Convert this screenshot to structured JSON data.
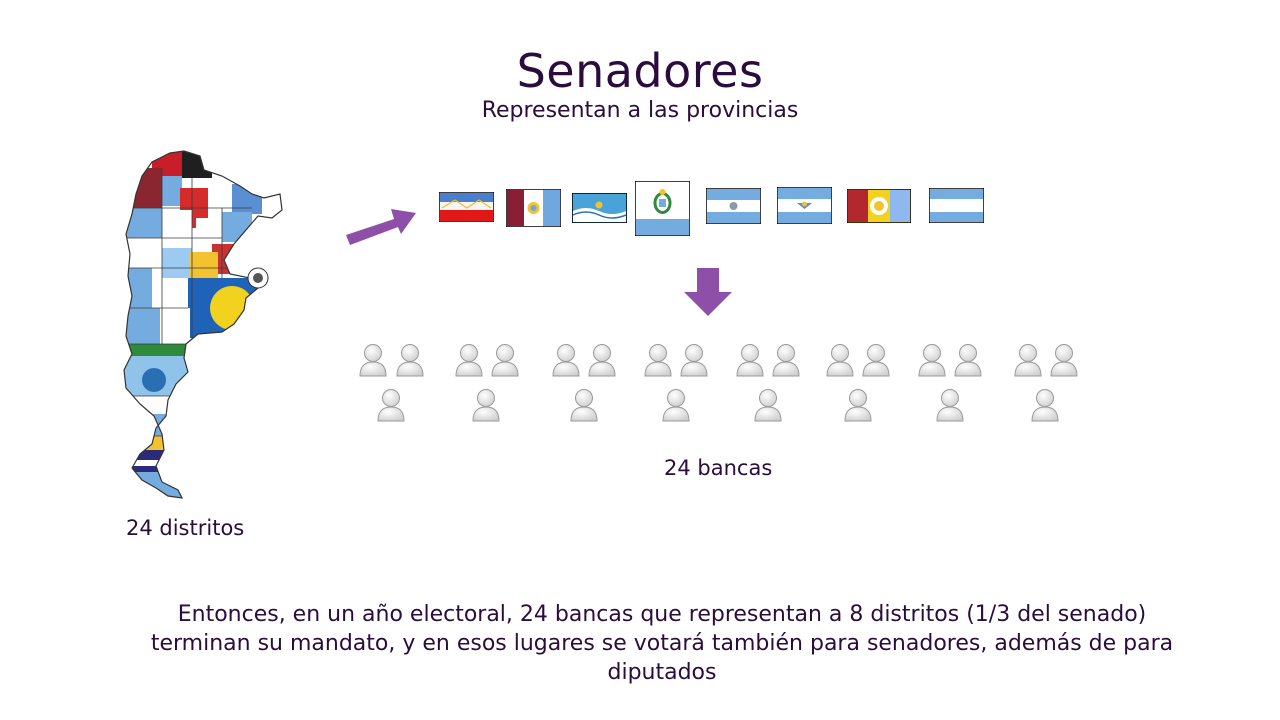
{
  "slide": {
    "title": "Senadores",
    "subtitle": "Representan a las provincias",
    "map_caption": "24 distritos",
    "seats_caption": "24 bancas",
    "footer_text": "Entonces, en un año electoral, 24 bancas que representan a 8 distritos (1/3 del senado) terminan su mandato, y en esos lugares se votará también para senadores, además de para diputados"
  },
  "visuals": {
    "arrow_color": "#8e4fa8",
    "text_color": "#2a0d3d",
    "flag_count": 8,
    "seat_count": 24,
    "map_icon": "argentina-provinces-flag-map",
    "seat_icon": "person-icon"
  }
}
